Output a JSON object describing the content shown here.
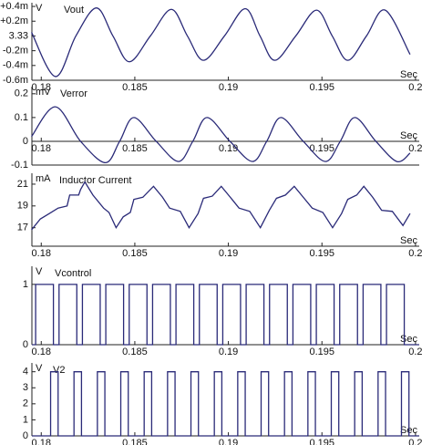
{
  "chart_data": [
    {
      "type": "line",
      "unit_label": "V",
      "title": "Vout",
      "x_label": "Sec",
      "color": "#2a2a78",
      "smooth": true,
      "xlim": [
        0.1795,
        0.2002
      ],
      "xticks": [
        0.18,
        0.185,
        0.19,
        0.195,
        0.2
      ],
      "ylim": [
        3.3294,
        3.33045
      ],
      "yticks": [
        {
          "value": 3.3304,
          "label": "+0.4m"
        },
        {
          "value": 3.3302,
          "label": "+0.2m"
        },
        3.33,
        {
          "value": 3.3298,
          "label": "-0.2m"
        },
        {
          "value": 3.3296,
          "label": "-0.4m"
        },
        {
          "value": 3.3294,
          "label": "-0.6m"
        }
      ],
      "x": [
        0.17948,
        0.18076,
        0.18185,
        0.18295,
        0.18383,
        0.18471,
        0.18583,
        0.18695,
        0.18781,
        0.18867,
        0.18979,
        0.1909,
        0.19169,
        0.19248,
        0.1936,
        0.19471,
        0.19555,
        0.19638,
        0.19738,
        0.19838,
        0.19971
      ],
      "values": [
        3.33005,
        3.32945,
        3.33,
        3.33038,
        3.33,
        3.32965,
        3.33,
        3.33036,
        3.33,
        3.32967,
        3.33,
        3.33037,
        3.33,
        3.32967,
        3.33,
        3.33035,
        3.33,
        3.32967,
        3.33,
        3.33035,
        3.32975
      ]
    },
    {
      "type": "line",
      "unit_label": "mV",
      "title": "Verror",
      "x_label": "Sec",
      "color": "#2a2a78",
      "smooth": true,
      "x_axis_at": 0,
      "xlim": [
        0.1795,
        0.2002
      ],
      "xticks": [
        0.18,
        0.185,
        0.19,
        0.195,
        0.2
      ],
      "ylim": [
        -0.1,
        0.23
      ],
      "yticks": [
        0.2,
        0.1,
        0,
        -0.1
      ],
      "x": [
        0.17948,
        0.18076,
        0.1821,
        0.18343,
        0.18419,
        0.18495,
        0.18614,
        0.18733,
        0.1881,
        0.18886,
        0.19008,
        0.19129,
        0.19205,
        0.19281,
        0.194,
        0.19519,
        0.19598,
        0.19676,
        0.19788,
        0.199,
        0.19971
      ],
      "values": [
        0.02,
        0.145,
        0.0,
        -0.09,
        0.0,
        0.1,
        0.0,
        -0.085,
        0.0,
        0.1,
        0.0,
        -0.085,
        0.0,
        0.1,
        0.0,
        -0.085,
        0.0,
        0.1,
        0.0,
        -0.085,
        -0.05
      ]
    },
    {
      "type": "line",
      "unit_label": "mA",
      "title": "Inductor Current",
      "x_label": "Sec",
      "color": "#2a2a78",
      "xlim": [
        0.1795,
        0.2002
      ],
      "xticks": [
        0.18,
        0.185,
        0.19,
        0.195,
        0.2
      ],
      "ylim": [
        15.3,
        22
      ],
      "yticks": [
        21,
        19,
        17
      ],
      "x": [
        0.17948,
        0.17995,
        0.18043,
        0.1809,
        0.18138,
        0.18152,
        0.182,
        0.1821,
        0.18233,
        0.18276,
        0.18333,
        0.18362,
        0.184,
        0.18438,
        0.18476,
        0.18495,
        0.18543,
        0.186,
        0.18648,
        0.18686,
        0.18743,
        0.1879,
        0.18838,
        0.18867,
        0.18914,
        0.18962,
        0.1901,
        0.19057,
        0.19114,
        0.19171,
        0.19219,
        0.19257,
        0.19305,
        0.19352,
        0.194,
        0.19448,
        0.19505,
        0.19557,
        0.19605,
        0.19638,
        0.19686,
        0.19724,
        0.19771,
        0.19819,
        0.19876,
        0.19933,
        0.19971
      ],
      "values": [
        16.8,
        17.8,
        18.3,
        18.8,
        19.0,
        20.0,
        20.0,
        20.5,
        21.2,
        20.0,
        18.8,
        18.4,
        17.0,
        18.0,
        18.4,
        19.6,
        19.8,
        20.8,
        19.8,
        18.8,
        18.5,
        17.0,
        18.3,
        19.7,
        19.9,
        20.8,
        19.8,
        18.8,
        18.5,
        17.0,
        18.6,
        19.7,
        20.0,
        20.8,
        19.8,
        18.8,
        18.4,
        17.0,
        18.3,
        19.6,
        20.0,
        20.8,
        19.8,
        18.6,
        18.5,
        17.2,
        18.3
      ]
    },
    {
      "type": "line",
      "unit_label": "V",
      "title": "Vcontrol",
      "x_label": "Sec",
      "color": "#2a2a78",
      "xlim": [
        0.1795,
        0.2002
      ],
      "xticks": [
        0.18,
        0.185,
        0.19,
        0.195,
        0.2
      ],
      "ylim": [
        0,
        1.3
      ],
      "yticks": [
        1,
        0
      ],
      "x": [
        0.1795,
        0.1797,
        0.1797,
        0.18065,
        0.18065,
        0.18095,
        0.18095,
        0.1819,
        0.1819,
        0.1822,
        0.1822,
        0.18315,
        0.18315,
        0.18345,
        0.18345,
        0.1844,
        0.1844,
        0.1847,
        0.1847,
        0.18565,
        0.18565,
        0.18595,
        0.18595,
        0.1869,
        0.1869,
        0.1872,
        0.1872,
        0.18815,
        0.18815,
        0.18845,
        0.18845,
        0.1894,
        0.1894,
        0.1897,
        0.1897,
        0.19065,
        0.19065,
        0.19095,
        0.19095,
        0.1919,
        0.1919,
        0.1922,
        0.1922,
        0.19315,
        0.19315,
        0.19345,
        0.19345,
        0.1944,
        0.1944,
        0.1947,
        0.1947,
        0.19565,
        0.19565,
        0.19595,
        0.19595,
        0.1969,
        0.1969,
        0.1972,
        0.1972,
        0.19815,
        0.19815,
        0.19845,
        0.19845,
        0.1994,
        0.1994,
        0.2002
      ],
      "values": [
        0,
        0,
        1,
        1,
        0,
        0,
        1,
        1,
        0,
        0,
        1,
        1,
        0,
        0,
        1,
        1,
        0,
        0,
        1,
        1,
        0,
        0,
        1,
        1,
        0,
        0,
        1,
        1,
        0,
        0,
        1,
        1,
        0,
        0,
        1,
        1,
        0,
        0,
        1,
        1,
        0,
        0,
        1,
        1,
        0,
        0,
        1,
        1,
        0,
        0,
        1,
        1,
        0,
        0,
        1,
        1,
        0,
        0,
        1,
        1,
        0,
        0,
        1,
        1,
        0,
        0
      ]
    },
    {
      "type": "line",
      "unit_label": "V",
      "title": "V2",
      "x_label": "Sec",
      "color": "#2a2a78",
      "xlim": [
        0.1795,
        0.2002
      ],
      "xticks": [
        0.18,
        0.185,
        0.19,
        0.195,
        0.2
      ],
      "ylim": [
        0,
        4.55
      ],
      "yticks": [
        4,
        3,
        2,
        1,
        0
      ],
      "x": [
        0.1795,
        0.1805,
        0.1805,
        0.1809,
        0.1809,
        0.18175,
        0.18175,
        0.18215,
        0.18215,
        0.183,
        0.183,
        0.1834,
        0.1834,
        0.18425,
        0.18425,
        0.18465,
        0.18465,
        0.1855,
        0.1855,
        0.1859,
        0.1859,
        0.18675,
        0.18675,
        0.18715,
        0.18715,
        0.188,
        0.188,
        0.1884,
        0.1884,
        0.18925,
        0.18925,
        0.18965,
        0.18965,
        0.1905,
        0.1905,
        0.1909,
        0.1909,
        0.19175,
        0.19175,
        0.19215,
        0.19215,
        0.193,
        0.193,
        0.1934,
        0.1934,
        0.19425,
        0.19425,
        0.19465,
        0.19465,
        0.1955,
        0.1955,
        0.1959,
        0.1959,
        0.19675,
        0.19675,
        0.19715,
        0.19715,
        0.198,
        0.198,
        0.1984,
        0.1984,
        0.19925,
        0.19925,
        0.19965,
        0.19965,
        0.2002
      ],
      "values": [
        0,
        0,
        4,
        4,
        0,
        0,
        4,
        4,
        0,
        0,
        4,
        4,
        0,
        0,
        4,
        4,
        0,
        0,
        4,
        4,
        0,
        0,
        4,
        4,
        0,
        0,
        4,
        4,
        0,
        0,
        4,
        4,
        0,
        0,
        4,
        4,
        0,
        0,
        4,
        4,
        0,
        0,
        4,
        4,
        0,
        0,
        4,
        4,
        0,
        0,
        4,
        4,
        0,
        0,
        4,
        4,
        0,
        0,
        4,
        4,
        0,
        0,
        4,
        4,
        0,
        0
      ]
    }
  ]
}
